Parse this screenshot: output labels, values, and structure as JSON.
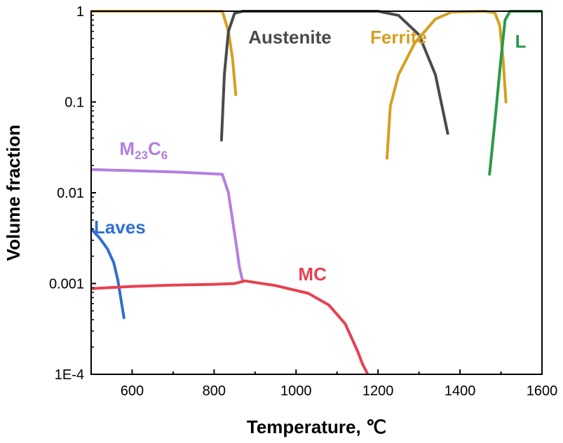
{
  "chart_data": {
    "type": "line",
    "xlabel": "Temperature, ℃",
    "ylabel": "Volume fraction",
    "xlim": [
      500,
      1600
    ],
    "ylim": [
      0.0001,
      1
    ],
    "y_scale": "log",
    "grid": false,
    "x_ticks": [
      600,
      800,
      1000,
      1200,
      1400,
      1600
    ],
    "x_tick_labels": [
      "600",
      "800",
      "1000",
      "1200",
      "1400",
      "1600"
    ],
    "y_ticks": [
      0.0001,
      0.001,
      0.01,
      0.1,
      1
    ],
    "y_tick_labels": [
      "1E-4",
      "0.001",
      "0.01",
      "0.1",
      "1"
    ],
    "series": [
      {
        "name": "Ferrite",
        "color": "#d4a020",
        "points": [
          [
            500,
            1
          ],
          [
            820,
            1
          ],
          [
            835,
            0.6
          ],
          [
            845,
            0.3
          ],
          [
            853,
            0.12
          ]
        ],
        "label_at": [
          150,
          1
        ]
      },
      {
        "name": "Ferrite",
        "color": "#d4a020",
        "points": [
          [
            1222,
            0.024
          ],
          [
            1230,
            0.09
          ],
          [
            1250,
            0.2
          ],
          [
            1290,
            0.45
          ],
          [
            1340,
            0.82
          ],
          [
            1380,
            0.98
          ],
          [
            1460,
            1
          ],
          [
            1485,
            0.96
          ],
          [
            1497,
            0.7
          ],
          [
            1505,
            0.3
          ],
          [
            1512,
            0.1
          ]
        ],
        "label_at": [
          1250,
          1
        ]
      },
      {
        "name": "Austenite",
        "color": "#4a4a4a",
        "points": [
          [
            818,
            0.038
          ],
          [
            825,
            0.2
          ],
          [
            835,
            0.6
          ],
          [
            850,
            0.95
          ],
          [
            870,
            1
          ],
          [
            1200,
            1
          ],
          [
            1250,
            0.9
          ],
          [
            1300,
            0.55
          ],
          [
            1340,
            0.2
          ],
          [
            1370,
            0.045
          ]
        ],
        "label_at": [
          985,
          1
        ]
      },
      {
        "name": "L",
        "color": "#2a9a4a",
        "points": [
          [
            1472,
            0.016
          ],
          [
            1485,
            0.06
          ],
          [
            1500,
            0.3
          ],
          [
            1510,
            0.8
          ],
          [
            1522,
            1
          ],
          [
            1600,
            1
          ]
        ],
        "label_at": [
          1548,
          1
        ]
      },
      {
        "name": "M23C6",
        "color": "#b47ee0",
        "points": [
          [
            500,
            0.018
          ],
          [
            600,
            0.0175
          ],
          [
            700,
            0.017
          ],
          [
            820,
            0.016
          ],
          [
            835,
            0.01
          ],
          [
            845,
            0.005
          ],
          [
            855,
            0.0025
          ],
          [
            862,
            0.0015
          ],
          [
            870,
            0.00105
          ]
        ],
        "label_parts": [
          "M",
          "23",
          "C",
          "6"
        ],
        "label_at": [
          628,
          0.022
        ]
      },
      {
        "name": "Laves",
        "color": "#2f6fd0",
        "points": [
          [
            500,
            0.004
          ],
          [
            520,
            0.0032
          ],
          [
            540,
            0.0024
          ],
          [
            555,
            0.0017
          ],
          [
            565,
            0.0011
          ],
          [
            572,
            0.0007
          ],
          [
            580,
            0.00042
          ]
        ],
        "label_at": [
          570,
          0.0025
        ]
      },
      {
        "name": "MC",
        "color": "#e84050",
        "points": [
          [
            500,
            0.00088
          ],
          [
            600,
            0.00093
          ],
          [
            700,
            0.00096
          ],
          [
            800,
            0.00098
          ],
          [
            850,
            0.001
          ],
          [
            875,
            0.00107
          ],
          [
            950,
            0.00095
          ],
          [
            1030,
            0.00078
          ],
          [
            1080,
            0.00058
          ],
          [
            1120,
            0.00036
          ],
          [
            1150,
            0.00018
          ],
          [
            1162,
            0.00013
          ],
          [
            1175,
            0.0001
          ]
        ],
        "label_at": [
          1040,
          0.0009
        ]
      }
    ]
  }
}
